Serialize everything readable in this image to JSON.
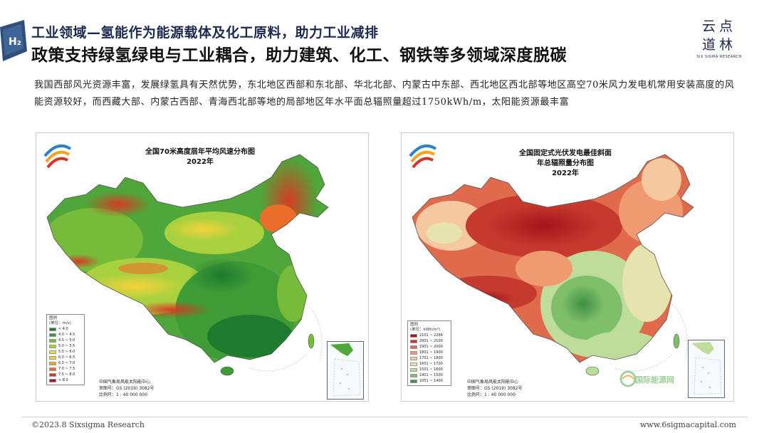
{
  "header": {
    "title": "工业领域—氢能作为能源载体及化工原料，助力工业减排",
    "subtitle": "政策支持绿氢绿电与工业耦合，助力建筑、化工、钢铁等多领域深度脱碳",
    "badge_text": "H₂"
  },
  "brand": {
    "line1": "云点",
    "line2": "道林",
    "small": "SIX SIGMA RESEARCH"
  },
  "body": {
    "paragraph": "我国西部风光资源丰富，发展绿氢具有天然优势，东北地区西部和东北部、华北北部、内蒙古中东部、西北地区西北部等地区高空70米风力发电机常用安装高度的风能资源较好，而西藏大部、内蒙古西部、青海西北部等地的局部地区年水平面总辐照量超过1750kWh/m，太阳能资源最丰富"
  },
  "map_left": {
    "title_line1": "全国70米高度层年平均风速分布图",
    "title_line2": "2022年",
    "legend_head": "图例",
    "legend_unit": "(单位：m/s)",
    "legend": [
      {
        "label": "< 4.0",
        "color": "#1e7a2e"
      },
      {
        "label": "4.0 ~ 4.5",
        "color": "#3f9b35"
      },
      {
        "label": "4.5 ~ 5.0",
        "color": "#76bb3a"
      },
      {
        "label": "5.0 ~ 5.5",
        "color": "#a9d13f"
      },
      {
        "label": "5.5 ~ 6.0",
        "color": "#d9e44a"
      },
      {
        "label": "6.0 ~ 6.5",
        "color": "#f4d23c"
      },
      {
        "label": "6.5 ~ 7.0",
        "color": "#f2a431"
      },
      {
        "label": "7.0 ~ 7.5",
        "color": "#ec6d2a"
      },
      {
        "label": "7.5 ~ 8.0",
        "color": "#d83a24"
      },
      {
        "label": "> 8.0",
        "color": "#a8161b"
      }
    ],
    "credit_line1": "中国气象局风能太阳能中心",
    "credit_line2": "审图号：GS (2019) 3082号",
    "credit_line3": "比例尺：1 : 40 000 000"
  },
  "map_right": {
    "title_line1": "全国固定式光伏发电最佳斜面",
    "title_line2": "年总辐照量分布图",
    "title_line3": "2022年",
    "legend_head": "图例",
    "legend_unit": "(单位：kWh/m²)",
    "legend": [
      {
        "label": "2101 ~ 2266",
        "color": "#a3141b"
      },
      {
        "label": "2001 ~ 2100",
        "color": "#c6392e"
      },
      {
        "label": "1901 ~ 2000",
        "color": "#e06a4c"
      },
      {
        "label": "1801 ~ 1900",
        "color": "#f09a72"
      },
      {
        "label": "1701 ~ 1800",
        "color": "#f6c8a0"
      },
      {
        "label": "1601 ~ 1700",
        "color": "#e7e3b0"
      },
      {
        "label": "1501 ~ 1600",
        "color": "#bfdd9a"
      },
      {
        "label": "1401 ~ 1500",
        "color": "#7fbf6a"
      },
      {
        "label": "1051 ~ 1400",
        "color": "#3f8f45"
      }
    ],
    "credit_line1": "中国气象局风能太阳能中心",
    "credit_line2": "审图号：GS (2019) 3082号",
    "credit_line3": "比例尺：1 : 40 000 000",
    "watermark": "国际能源网"
  },
  "footer": {
    "left": "©2023.8 Sixsigma Research",
    "right": "www.6sigmacapital.com"
  }
}
